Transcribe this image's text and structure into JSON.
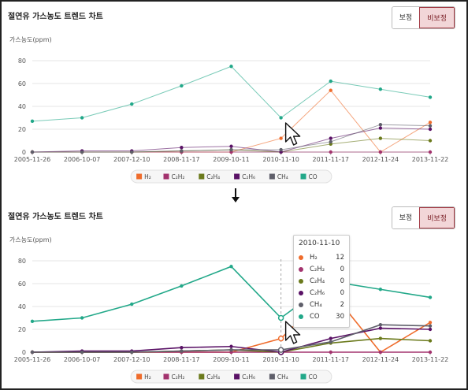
{
  "panels": [
    {
      "title": "절연유 가스농도 트렌드 차트",
      "buttons": [
        "보정",
        "비보정"
      ],
      "active_button": 1
    },
    {
      "title": "절연유 가스농도 트렌드 차트",
      "buttons": [
        "보정",
        "비보정"
      ],
      "active_button": 1,
      "tooltip": {
        "date": "2010-11-10",
        "rows": [
          {
            "name": "H₂",
            "value": "12",
            "color": "#ef6c2c"
          },
          {
            "name": "C₂H₂",
            "value": "0",
            "color": "#a3336e"
          },
          {
            "name": "C₂H₄",
            "value": "0",
            "color": "#6b7a1c"
          },
          {
            "name": "C₂H₆",
            "value": "0",
            "color": "#5a1266"
          },
          {
            "name": "CH₄",
            "value": "2",
            "color": "#5f5f6a"
          },
          {
            "name": "CO",
            "value": "30",
            "color": "#22a889"
          }
        ]
      }
    }
  ],
  "chart_data": [
    {
      "type": "line",
      "ylabel": "가스농도(ppm)",
      "ylim": [
        0,
        80
      ],
      "yticks": [
        0,
        20,
        40,
        60,
        80
      ],
      "categories": [
        "2005-11-26",
        "2006-10-07",
        "2007-12-10",
        "2008-11-17",
        "2009-10-11",
        "2010-11-10",
        "2011-11-17",
        "2012-11-24",
        "2013-11-22"
      ],
      "grid": true,
      "legend_position": "bottom",
      "series": [
        {
          "name": "H₂",
          "color": "#ef6c2c",
          "values": [
            0,
            0,
            0,
            0,
            0,
            12,
            54,
            0,
            26
          ]
        },
        {
          "name": "C₂H₂",
          "color": "#a3336e",
          "values": [
            0,
            0,
            0,
            0,
            0,
            0,
            0,
            0,
            0
          ]
        },
        {
          "name": "C₂H₄",
          "color": "#6b7a1c",
          "values": [
            0,
            0,
            0,
            1,
            2,
            0,
            7,
            12,
            10
          ]
        },
        {
          "name": "C₂H₆",
          "color": "#5a1266",
          "values": [
            0,
            1,
            1,
            4,
            5,
            0,
            12,
            21,
            20
          ]
        },
        {
          "name": "CH₄",
          "color": "#5f5f6a",
          "values": [
            0,
            0,
            0,
            1,
            2,
            2,
            9,
            24,
            23
          ]
        },
        {
          "name": "CO",
          "color": "#22a889",
          "values": [
            27,
            30,
            42,
            58,
            75,
            30,
            62,
            55,
            48
          ]
        }
      ]
    },
    {
      "type": "line",
      "ylabel": "가스농도(ppm)",
      "ylim": [
        0,
        80
      ],
      "yticks": [
        0,
        20,
        40,
        60,
        80
      ],
      "categories": [
        "2005-11-26",
        "2006-10-07",
        "2007-12-10",
        "2008-11-17",
        "2009-10-11",
        "2010-11-10",
        "2011-11-17",
        "2012-11-24",
        "2013-11-22"
      ],
      "grid": true,
      "legend_position": "bottom",
      "series": [
        {
          "name": "H₂",
          "color": "#ef6c2c",
          "values": [
            0,
            0,
            0,
            0,
            0,
            12,
            54,
            0,
            26
          ]
        },
        {
          "name": "C₂H₂",
          "color": "#a3336e",
          "values": [
            0,
            0,
            0,
            0,
            0,
            0,
            0,
            0,
            0
          ]
        },
        {
          "name": "C₂H₄",
          "color": "#6b7a1c",
          "values": [
            0,
            0,
            0,
            1,
            2,
            0,
            8,
            12,
            10
          ]
        },
        {
          "name": "C₂H₆",
          "color": "#5a1266",
          "values": [
            0,
            1,
            1,
            4,
            5,
            0,
            12,
            21,
            20
          ]
        },
        {
          "name": "CH₄",
          "color": "#5f5f6a",
          "values": [
            0,
            0,
            0,
            1,
            2,
            2,
            9,
            24,
            23
          ]
        },
        {
          "name": "CO",
          "color": "#22a889",
          "values": [
            27,
            30,
            42,
            58,
            75,
            30,
            62,
            55,
            48
          ]
        }
      ]
    }
  ]
}
